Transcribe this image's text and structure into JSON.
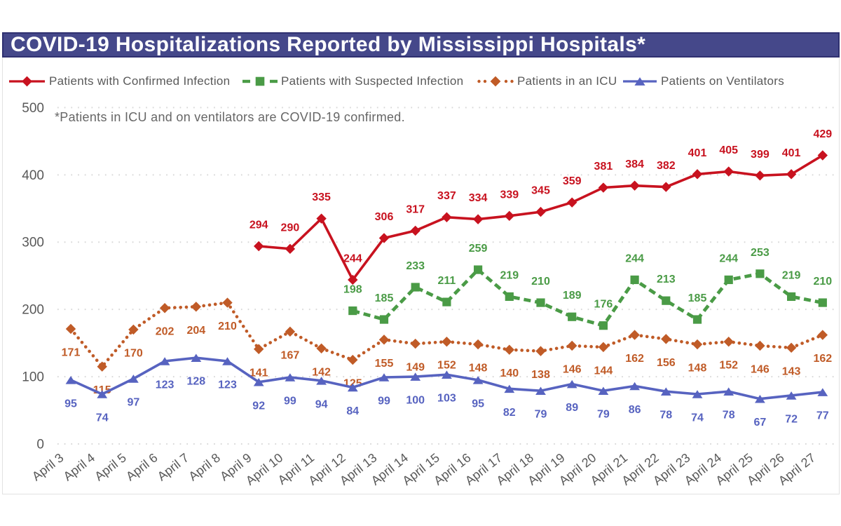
{
  "title": "COVID-19 Hospitalizations Reported by Mississippi Hospitals*",
  "annotation": "*Patients in ICU and on ventilators are COVID-19 confirmed.",
  "colors": {
    "title_bar_bg": "#45488a",
    "title_bar_border": "#2f3070",
    "title_text": "#ffffff",
    "confirmed": "#c8121f",
    "suspected": "#4a9b46",
    "icu": "#c05b27",
    "ventilators": "#5763c0",
    "axis_text": "#595959",
    "gridline": "#d8d8d8",
    "annotation_text": "#666666",
    "panel_border": "#e2e2e2"
  },
  "legend": {
    "items": [
      {
        "key": "confirmed",
        "label": "Patients with Confirmed Infection"
      },
      {
        "key": "suspected",
        "label": "Patients with Suspected Infection"
      },
      {
        "key": "icu",
        "label": "Patients in an ICU"
      },
      {
        "key": "ventilators",
        "label": "Patients on Ventilators"
      }
    ]
  },
  "chart_data": {
    "type": "line",
    "title": "COVID-19 Hospitalizations Reported by Mississippi Hospitals*",
    "categories": [
      "April 3",
      "April 4",
      "April 5",
      "April 6",
      "April 7",
      "April 8",
      "April 9",
      "April 10",
      "April 11",
      "April 12",
      "April 13",
      "April 14",
      "April 15",
      "April 16",
      "April 17",
      "April 18",
      "April 19",
      "April 20",
      "April 21",
      "April 22",
      "April 23",
      "April 24",
      "April 25",
      "April 26",
      "April 27"
    ],
    "xlabel": "",
    "ylabel": "",
    "ylim": [
      0,
      500
    ],
    "y_ticks": [
      0,
      100,
      200,
      300,
      400,
      500
    ],
    "grid": true,
    "legend_position": "top",
    "series": [
      {
        "name": "Patients with Confirmed Infection",
        "key": "confirmed",
        "color": "#c8121f",
        "marker": "diamond",
        "line_style": "solid",
        "label_position": "above",
        "start_index": 6,
        "values": [
          294,
          290,
          335,
          244,
          306,
          317,
          337,
          334,
          339,
          345,
          359,
          381,
          384,
          382,
          401,
          405,
          399,
          401,
          429
        ]
      },
      {
        "name": "Patients with Suspected Infection",
        "key": "suspected",
        "color": "#4a9b46",
        "marker": "square",
        "line_style": "dashed",
        "label_position": "above",
        "start_index": 9,
        "values": [
          198,
          185,
          233,
          211,
          259,
          219,
          210,
          189,
          176,
          244,
          213,
          185,
          244,
          253,
          219,
          210
        ]
      },
      {
        "name": "Patients in an ICU",
        "key": "icu",
        "color": "#c05b27",
        "marker": "diamond",
        "line_style": "dotted",
        "label_position": "below",
        "start_index": 0,
        "values": [
          171,
          115,
          170,
          202,
          204,
          210,
          141,
          167,
          142,
          125,
          155,
          149,
          152,
          148,
          140,
          138,
          146,
          144,
          162,
          156,
          148,
          152,
          146,
          143,
          162
        ]
      },
      {
        "name": "Patients on Ventilators",
        "key": "ventilators",
        "color": "#5763c0",
        "marker": "triangle",
        "line_style": "solid",
        "label_position": "below",
        "start_index": 0,
        "values": [
          95,
          74,
          97,
          123,
          128,
          123,
          92,
          99,
          94,
          84,
          99,
          100,
          103,
          95,
          82,
          79,
          89,
          79,
          86,
          78,
          74,
          78,
          67,
          72,
          77
        ]
      }
    ]
  }
}
